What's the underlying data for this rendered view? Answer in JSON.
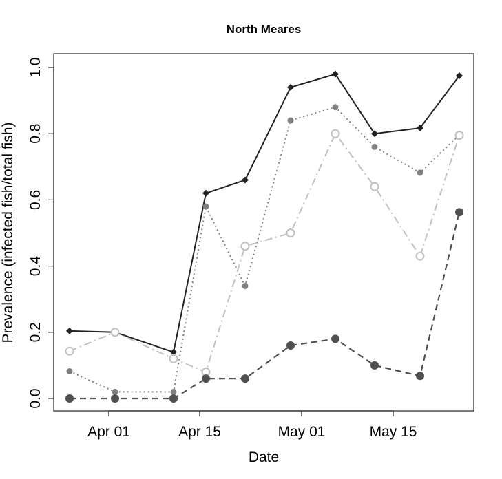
{
  "chart_data": {
    "type": "line",
    "title": "North Meares",
    "xlabel": "Date",
    "ylabel": "Prevalence (infected fish/total fish)",
    "x": [
      "Mar 26",
      "Apr 02",
      "Apr 10",
      "Apr 16",
      "Apr 22",
      "Apr 30",
      "May 06",
      "May 12",
      "May 19",
      "May 25"
    ],
    "x_tick_labels": [
      "Apr 01",
      "Apr 15",
      "May 01",
      "May 15"
    ],
    "y_tick_labels": [
      "0.0",
      "0.2",
      "0.4",
      "0.6",
      "0.8",
      "1.0"
    ],
    "ylim": [
      0,
      1
    ],
    "grid": false,
    "series": [
      {
        "style": "solid",
        "marker": "filled-diamond",
        "color": "#222222",
        "values": [
          0.204,
          0.2,
          0.14,
          0.62,
          0.66,
          0.94,
          0.98,
          0.8,
          0.817,
          0.975
        ]
      },
      {
        "style": "dotted",
        "marker": "small-filled-circle",
        "color": "#808080",
        "values": [
          0.082,
          0.02,
          0.02,
          0.58,
          0.34,
          0.84,
          0.88,
          0.76,
          0.682,
          0.796
        ]
      },
      {
        "style": "dash-dot",
        "marker": "open-circle",
        "color": "#c0c0c0",
        "values": [
          0.143,
          0.2,
          0.12,
          0.08,
          0.46,
          0.5,
          0.8,
          0.64,
          0.43,
          0.795
        ]
      },
      {
        "style": "dashed",
        "marker": "large-filled-circle",
        "color": "#505050",
        "values": [
          0,
          0,
          0,
          0.06,
          0.06,
          0.16,
          0.18,
          0.1,
          0.068,
          0.563
        ]
      }
    ]
  }
}
